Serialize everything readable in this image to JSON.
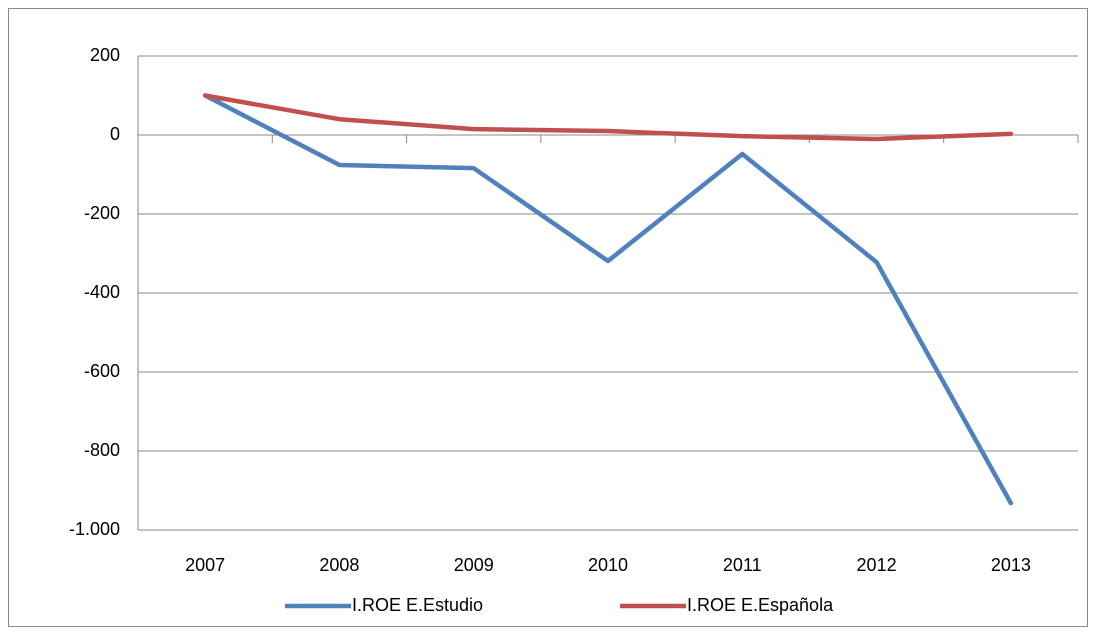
{
  "chart_data": {
    "type": "line",
    "categories": [
      "2007",
      "2008",
      "2009",
      "2010",
      "2011",
      "2012",
      "2013"
    ],
    "series": [
      {
        "name": "I.ROE E.Estudio",
        "color": "#4f81bd",
        "values": [
          100,
          -76,
          -84,
          -319,
          -48,
          -322,
          -932
        ]
      },
      {
        "name": "I.ROE E.Española",
        "color": "#c0504d",
        "values": [
          100,
          40,
          15,
          10,
          -3,
          -10,
          3
        ]
      }
    ],
    "ylim": [
      -1000,
      200
    ],
    "yticks": [
      {
        "value": -1000,
        "label": "-1.000"
      },
      -800,
      -600,
      -400,
      -200,
      0,
      200
    ],
    "grid": true,
    "legend": "bottom"
  }
}
